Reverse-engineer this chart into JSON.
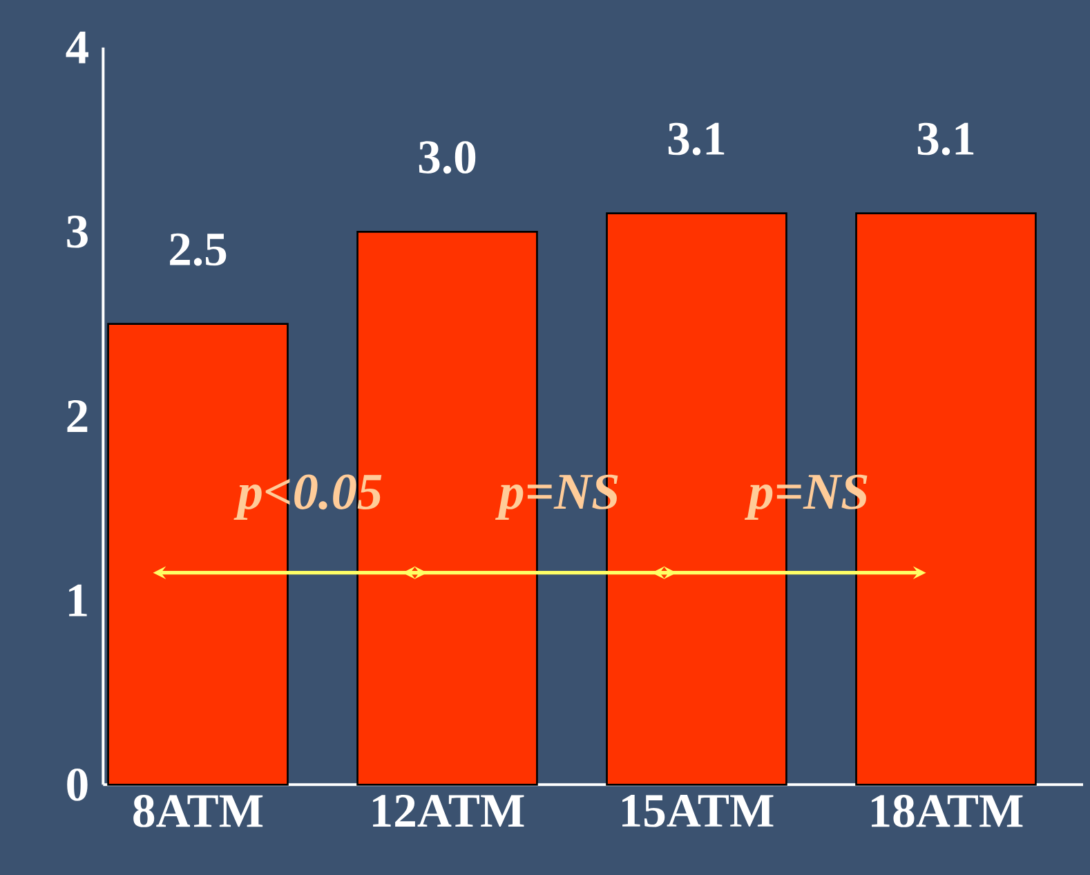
{
  "chart_data": {
    "type": "bar",
    "categories": [
      "8ATM",
      "12ATM",
      "15ATM",
      "18ATM"
    ],
    "values": [
      2.5,
      3.0,
      3.1,
      3.1
    ],
    "color": "#ff3300",
    "ylim": [
      0,
      4
    ],
    "yticks": [
      0,
      1,
      2,
      3,
      4
    ],
    "value_labels": [
      "2.5",
      "3.0",
      "3.1",
      "3.1"
    ],
    "grid": false,
    "annotations": [
      "p<0.05",
      "p=NS",
      "p=NS"
    ]
  }
}
